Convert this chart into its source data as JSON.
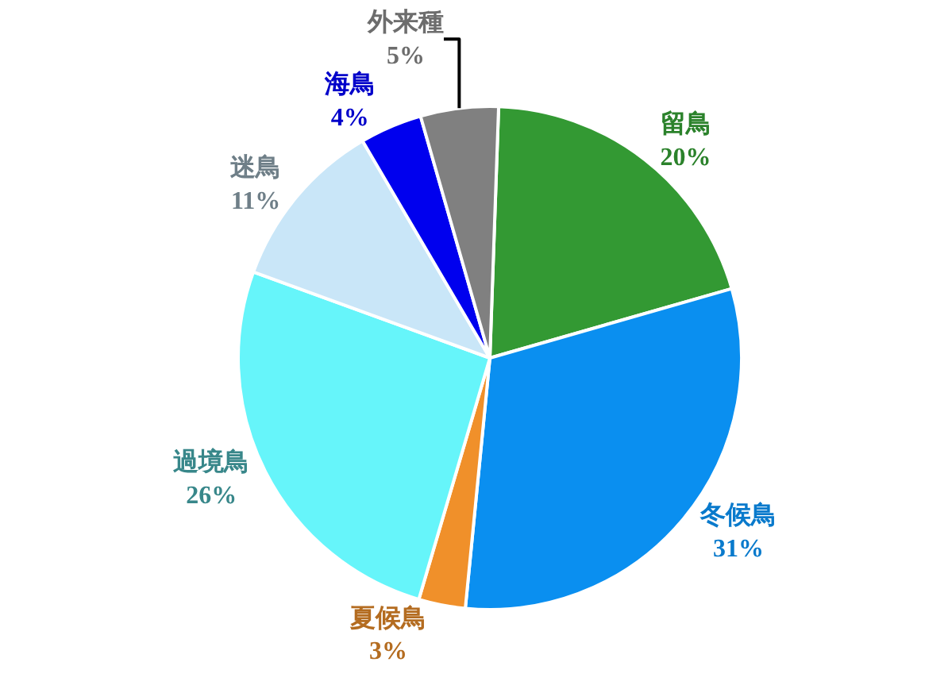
{
  "chart_data": {
    "type": "pie",
    "categories": [
      "留鳥",
      "冬候鳥",
      "夏候鳥",
      "過境鳥",
      "迷鳥",
      "海鳥",
      "外来種"
    ],
    "values": [
      20,
      31,
      3,
      26,
      11,
      4,
      5
    ],
    "value_labels": [
      "20%",
      "31%",
      "3%",
      "26%",
      "11%",
      "4%",
      "5%"
    ],
    "colors": [
      "#339933",
      "#0a8ff0",
      "#f0902a",
      "#66f5fa",
      "#c9e6f8",
      "#0000ee",
      "#808080"
    ]
  }
}
